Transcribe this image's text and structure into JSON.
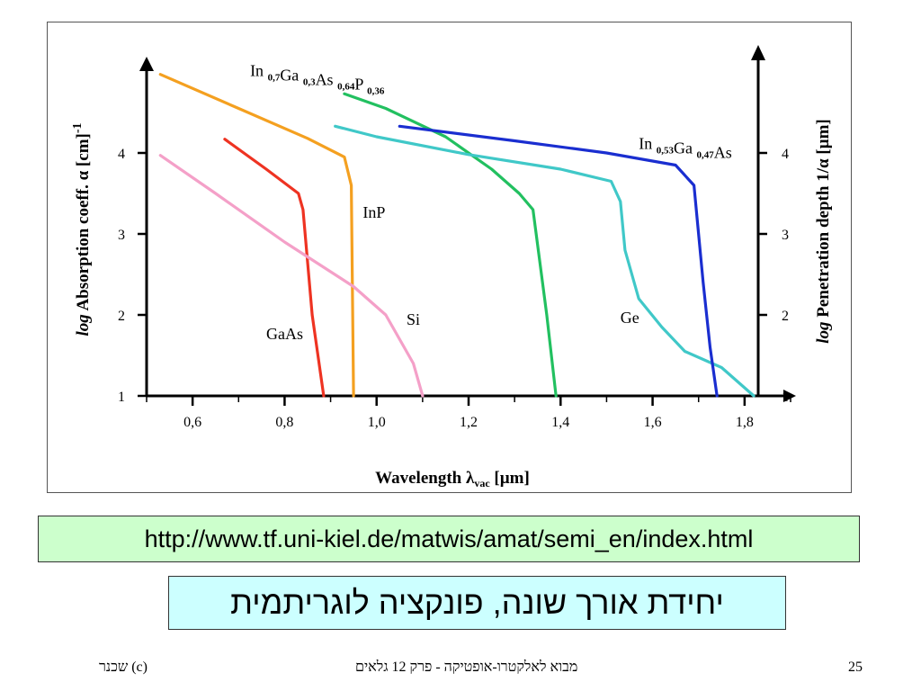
{
  "chart_data": {
    "type": "line",
    "title": "",
    "xlabel_main": "Wavelength λ",
    "xlabel_sub": "vac",
    "xlabel_unit": " [µm]",
    "ylabel_left_italic": "log",
    "ylabel_left": " Absorption coeff. α",
    "ylabel_left_unit": "[cm]",
    "ylabel_left_exp": "-1",
    "ylabel_right_italic": "log",
    "ylabel_right": " Penetration depth 1/α",
    "ylabel_right_unit": "[µm]",
    "xlim": [
      0.5,
      1.9
    ],
    "ylim": [
      1,
      5
    ],
    "x_ticks": [
      "0,6",
      "0,8",
      "1,0",
      "1,2",
      "1,4",
      "1,6",
      "1,8"
    ],
    "x_tick_values": [
      0.6,
      0.8,
      1.0,
      1.2,
      1.4,
      1.6,
      1.8
    ],
    "y_left_ticks": [
      "1",
      "2",
      "3",
      "4"
    ],
    "y_right_ticks": [
      "1",
      "2",
      "3",
      "4"
    ],
    "y_tick_values": [
      1,
      2,
      3,
      4
    ],
    "grid": false,
    "series": [
      {
        "name": "GaAs",
        "color": "#ee3322",
        "points": [
          [
            0.67,
            4.17
          ],
          [
            0.76,
            3.8
          ],
          [
            0.83,
            3.5
          ],
          [
            0.84,
            3.3
          ],
          [
            0.86,
            2.0
          ],
          [
            0.885,
            1.0
          ]
        ],
        "label_parts": [
          [
            "GaAs",
            ""
          ]
        ],
        "label_at": [
          0.76,
          1.7
        ]
      },
      {
        "name": "InP",
        "color": "#f4a020",
        "points": [
          [
            0.53,
            4.97
          ],
          [
            0.7,
            4.55
          ],
          [
            0.85,
            4.18
          ],
          [
            0.93,
            3.95
          ],
          [
            0.945,
            3.6
          ],
          [
            0.95,
            1.0
          ]
        ],
        "label_parts": [
          [
            "InP",
            ""
          ]
        ],
        "label_at": [
          0.97,
          3.2
        ]
      },
      {
        "name": "Si",
        "color": "#f4a0c8",
        "points": [
          [
            0.53,
            3.97
          ],
          [
            0.65,
            3.5
          ],
          [
            0.8,
            2.9
          ],
          [
            0.95,
            2.35
          ],
          [
            1.02,
            2.0
          ],
          [
            1.08,
            1.4
          ],
          [
            1.1,
            1.0
          ]
        ],
        "label_parts": [
          [
            "Si",
            ""
          ]
        ],
        "label_at": [
          1.065,
          1.88
        ]
      },
      {
        "name": "In0,7Ga0,3As0,64P0,36",
        "color": "#22c060",
        "points": [
          [
            0.93,
            4.73
          ],
          [
            1.02,
            4.55
          ],
          [
            1.15,
            4.2
          ],
          [
            1.25,
            3.8
          ],
          [
            1.31,
            3.5
          ],
          [
            1.34,
            3.3
          ],
          [
            1.37,
            2.0
          ],
          [
            1.39,
            1.0
          ]
        ],
        "label_parts": [
          [
            "In ",
            ""
          ],
          [
            "",
            "0,7"
          ],
          [
            "Ga ",
            ""
          ],
          [
            "",
            "0,3"
          ],
          [
            "As ",
            ""
          ],
          [
            "",
            "0,64"
          ],
          [
            "P ",
            ""
          ],
          [
            "",
            "0,36"
          ]
        ],
        "label_at": [
          0.725,
          4.95
        ]
      },
      {
        "name": "Ge",
        "color": "#40c8c8",
        "points": [
          [
            0.91,
            4.33
          ],
          [
            1.0,
            4.2
          ],
          [
            1.2,
            3.98
          ],
          [
            1.4,
            3.8
          ],
          [
            1.51,
            3.65
          ],
          [
            1.53,
            3.4
          ],
          [
            1.54,
            2.8
          ],
          [
            1.57,
            2.2
          ],
          [
            1.62,
            1.85
          ],
          [
            1.67,
            1.55
          ],
          [
            1.75,
            1.35
          ],
          [
            1.82,
            1.0
          ]
        ],
        "label_parts": [
          [
            "Ge",
            ""
          ]
        ],
        "label_at": [
          1.53,
          1.9
        ]
      },
      {
        "name": "In0,53Ga0,47As",
        "color": "#1a2ed0",
        "points": [
          [
            1.05,
            4.33
          ],
          [
            1.3,
            4.15
          ],
          [
            1.5,
            4.0
          ],
          [
            1.65,
            3.85
          ],
          [
            1.69,
            3.6
          ],
          [
            1.71,
            2.4
          ],
          [
            1.725,
            1.6
          ],
          [
            1.74,
            1.0
          ]
        ],
        "label_parts": [
          [
            "In ",
            ""
          ],
          [
            "",
            "0,53"
          ],
          [
            "Ga ",
            ""
          ],
          [
            "",
            "0,47"
          ],
          [
            "As",
            ""
          ]
        ],
        "label_at": [
          1.57,
          4.05
        ]
      }
    ]
  },
  "url_text": "http://www.tf.uni-kiel.de/matwis/amat/semi_en/index.html",
  "note_text": "יחידת אורך שונה, פונקציה לוגריתמית",
  "footer": {
    "left": "(c)   שכנר",
    "center": "מבוא לאלקטרו-אופטיקה - פרק  12 גלאים",
    "page": "25"
  }
}
